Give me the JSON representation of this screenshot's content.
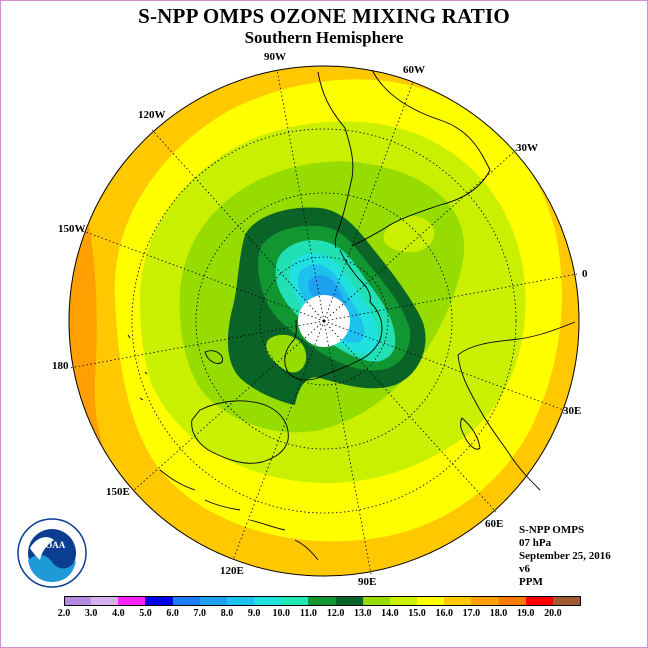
{
  "title": "S-NPP OMPS OZONE MIXING RATIO",
  "subtitle": "Southern Hemisphere",
  "longitude_labels": [
    "90W",
    "60W",
    "30W",
    "0",
    "30E",
    "60E",
    "90E",
    "120E",
    "150E",
    "180",
    "150W",
    "120W"
  ],
  "info": {
    "instrument": "S-NPP OMPS",
    "level": "07 hPa",
    "date": "September 25, 2016",
    "version": "v6",
    "units": "PPM"
  },
  "logo_text": "NOAA",
  "colorbar": {
    "ticks": [
      "2.0",
      "3.0",
      "4.0",
      "5.0",
      "6.0",
      "7.0",
      "8.0",
      "9.0",
      "10.0",
      "11.0",
      "12.0",
      "13.0",
      "14.0",
      "15.0",
      "16.0",
      "17.0",
      "18.0",
      "19.0",
      "20.0"
    ],
    "colors": [
      "#b58ae0",
      "#d7b0f0",
      "#ff22ff",
      "#0000e8",
      "#1e7dff",
      "#1ea0f0",
      "#1ec0f0",
      "#20e0e0",
      "#1fe8b4",
      "#129632",
      "#0a6428",
      "#96dc00",
      "#c8f000",
      "#ffff00",
      "#ffc800",
      "#ffa000",
      "#ff7800",
      "#ff0000",
      "#a05a32"
    ]
  },
  "colors": {
    "border": "#d28fd0",
    "background": "#ffffff"
  }
}
